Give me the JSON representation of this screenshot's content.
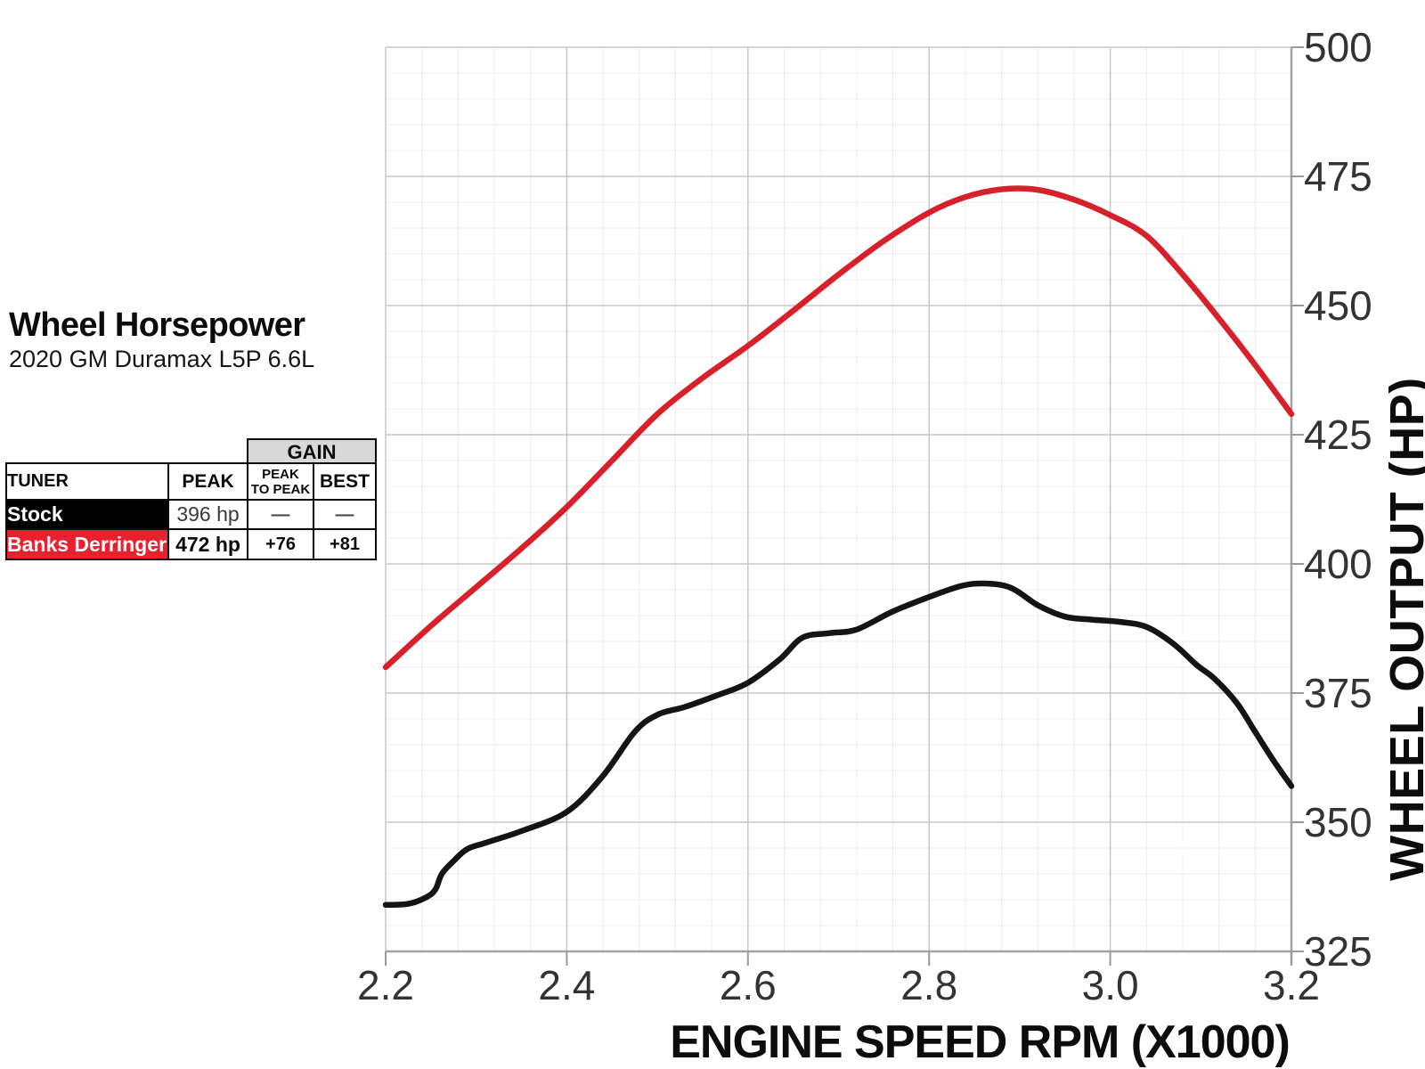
{
  "header": {
    "title": "Wheel Horsepower",
    "subtitle": "2020 GM Duramax L5P 6.6L"
  },
  "table": {
    "gain_header": "GAIN",
    "columns": [
      "TUNER",
      "PEAK",
      "PEAK\nTO PEAK",
      "BEST"
    ],
    "rows": [
      {
        "tuner": "Stock",
        "peak": "396 hp",
        "peak_to_peak": "—",
        "best": "—"
      },
      {
        "tuner": "Banks Derringer",
        "peak": "472 hp",
        "peak_to_peak": "+76",
        "best": "+81"
      }
    ]
  },
  "colors": {
    "banks_red": "#e9212f",
    "stock_black": "#000000",
    "curve_red": "#d8202a",
    "curve_black": "#141414",
    "grid_minor": "#ececec",
    "grid_major": "#c7c7c7",
    "axis_line": "#a3a3a3",
    "tick_text": "#333333"
  },
  "chart_data": {
    "type": "line",
    "title": "Wheel Horsepower",
    "subtitle": "2020 GM Duramax L5P 6.6L",
    "xlabel": "ENGINE SPEED RPM (X1000)",
    "ylabel": "WHEEL OUTPUT (HP)",
    "xlim": [
      2.2,
      3.2
    ],
    "ylim": [
      325,
      500
    ],
    "x_ticks": [
      "2.2",
      "2.4",
      "2.6",
      "2.8",
      "3.0",
      "3.2"
    ],
    "y_ticks": [
      "325",
      "350",
      "375",
      "400",
      "425",
      "450",
      "475",
      "500"
    ],
    "x_minor_step": 0.04,
    "y_minor_step": 5,
    "grid": true,
    "legend_position": "table-upper-left",
    "series": [
      {
        "name": "Stock",
        "color": "#141414",
        "peak_hp": 396,
        "points": [
          [
            2.2,
            334
          ],
          [
            2.225,
            334.2
          ],
          [
            2.245,
            335.5
          ],
          [
            2.255,
            337
          ],
          [
            2.262,
            340
          ],
          [
            2.275,
            342.5
          ],
          [
            2.29,
            344.8
          ],
          [
            2.31,
            346
          ],
          [
            2.35,
            348.3
          ],
          [
            2.4,
            352
          ],
          [
            2.44,
            359
          ],
          [
            2.475,
            367.5
          ],
          [
            2.5,
            370.8
          ],
          [
            2.53,
            372.3
          ],
          [
            2.565,
            374.5
          ],
          [
            2.6,
            377
          ],
          [
            2.635,
            381.5
          ],
          [
            2.66,
            385.7
          ],
          [
            2.69,
            386.6
          ],
          [
            2.72,
            387.3
          ],
          [
            2.76,
            390.8
          ],
          [
            2.8,
            393.6
          ],
          [
            2.835,
            395.7
          ],
          [
            2.86,
            396.2
          ],
          [
            2.89,
            395.4
          ],
          [
            2.92,
            392
          ],
          [
            2.95,
            389.8
          ],
          [
            2.98,
            389.2
          ],
          [
            3.01,
            388.8
          ],
          [
            3.04,
            387.8
          ],
          [
            3.07,
            384.5
          ],
          [
            3.095,
            380.5
          ],
          [
            3.115,
            377.8
          ],
          [
            3.14,
            373
          ],
          [
            3.16,
            367.5
          ],
          [
            3.18,
            362
          ],
          [
            3.2,
            357
          ]
        ]
      },
      {
        "name": "Banks Derringer",
        "color": "#d8202a",
        "peak_hp": 472,
        "points": [
          [
            2.2,
            380
          ],
          [
            2.25,
            388
          ],
          [
            2.3,
            395.5
          ],
          [
            2.35,
            403
          ],
          [
            2.4,
            411
          ],
          [
            2.45,
            420
          ],
          [
            2.5,
            429
          ],
          [
            2.55,
            436
          ],
          [
            2.6,
            442.2
          ],
          [
            2.65,
            449
          ],
          [
            2.7,
            456
          ],
          [
            2.75,
            462.5
          ],
          [
            2.8,
            468
          ],
          [
            2.84,
            471
          ],
          [
            2.88,
            472.5
          ],
          [
            2.92,
            472.4
          ],
          [
            2.96,
            470.5
          ],
          [
            3.0,
            467.5
          ],
          [
            3.04,
            463.5
          ],
          [
            3.08,
            456
          ],
          [
            3.12,
            447.5
          ],
          [
            3.16,
            438.5
          ],
          [
            3.2,
            429
          ]
        ]
      }
    ]
  }
}
